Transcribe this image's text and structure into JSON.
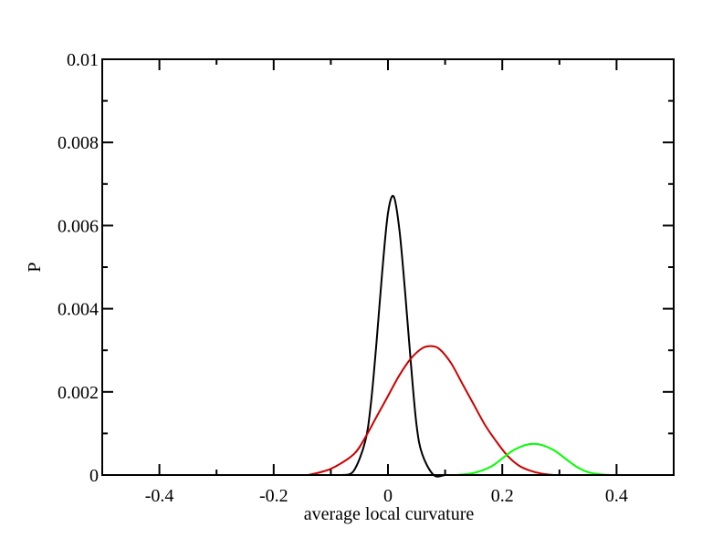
{
  "chart_data": {
    "type": "line",
    "title": "",
    "xlabel": "average local curvature",
    "ylabel": "P",
    "xlim": [
      -0.5,
      0.5
    ],
    "ylim": [
      0,
      0.01
    ],
    "x_ticks": [
      -0.4,
      -0.2,
      0,
      0.2,
      0.4
    ],
    "x_tick_labels": [
      "-0.4",
      "-0.2",
      "0",
      "0.2",
      "0.4"
    ],
    "y_ticks": [
      0,
      0.002,
      0.004,
      0.006,
      0.008,
      0.01
    ],
    "y_tick_labels": [
      "0",
      "0.002",
      "0.004",
      "0.006",
      "0.008",
      "0.01"
    ],
    "grid": false,
    "legend": "none",
    "series": [
      {
        "color": "#000000",
        "x": [
          -0.08,
          -0.06,
          -0.04,
          -0.03,
          -0.02,
          -0.01,
          0.0,
          0.01,
          0.02,
          0.03,
          0.04,
          0.05,
          0.06,
          0.08,
          0.1
        ],
        "y": [
          0.0,
          0.0001,
          0.0008,
          0.0017,
          0.0032,
          0.0049,
          0.0063,
          0.0067,
          0.0059,
          0.0044,
          0.0027,
          0.0012,
          0.0005,
          0.0,
          0.0
        ]
      },
      {
        "color": "#cc0000",
        "x": [
          -0.14,
          -0.1,
          -0.06,
          -0.04,
          -0.02,
          0.0,
          0.02,
          0.04,
          0.06,
          0.075,
          0.09,
          0.11,
          0.13,
          0.15,
          0.17,
          0.19,
          0.21,
          0.23,
          0.25,
          0.27,
          0.29
        ],
        "y": [
          0.0,
          0.00015,
          0.0005,
          0.0009,
          0.0014,
          0.0019,
          0.0024,
          0.0028,
          0.00305,
          0.0031,
          0.00303,
          0.0027,
          0.0022,
          0.0017,
          0.0012,
          0.0008,
          0.00045,
          0.00022,
          0.0001,
          3e-05,
          0.0
        ]
      },
      {
        "color": "#00ff00",
        "x": [
          0.12,
          0.15,
          0.18,
          0.2,
          0.22,
          0.24,
          0.255,
          0.27,
          0.29,
          0.31,
          0.33,
          0.35,
          0.37,
          0.39
        ],
        "y": [
          0.0,
          5e-05,
          0.0002,
          0.0004,
          0.0006,
          0.00072,
          0.00075,
          0.00072,
          0.0006,
          0.0004,
          0.0002,
          7e-05,
          2e-05,
          0.0
        ]
      }
    ]
  }
}
